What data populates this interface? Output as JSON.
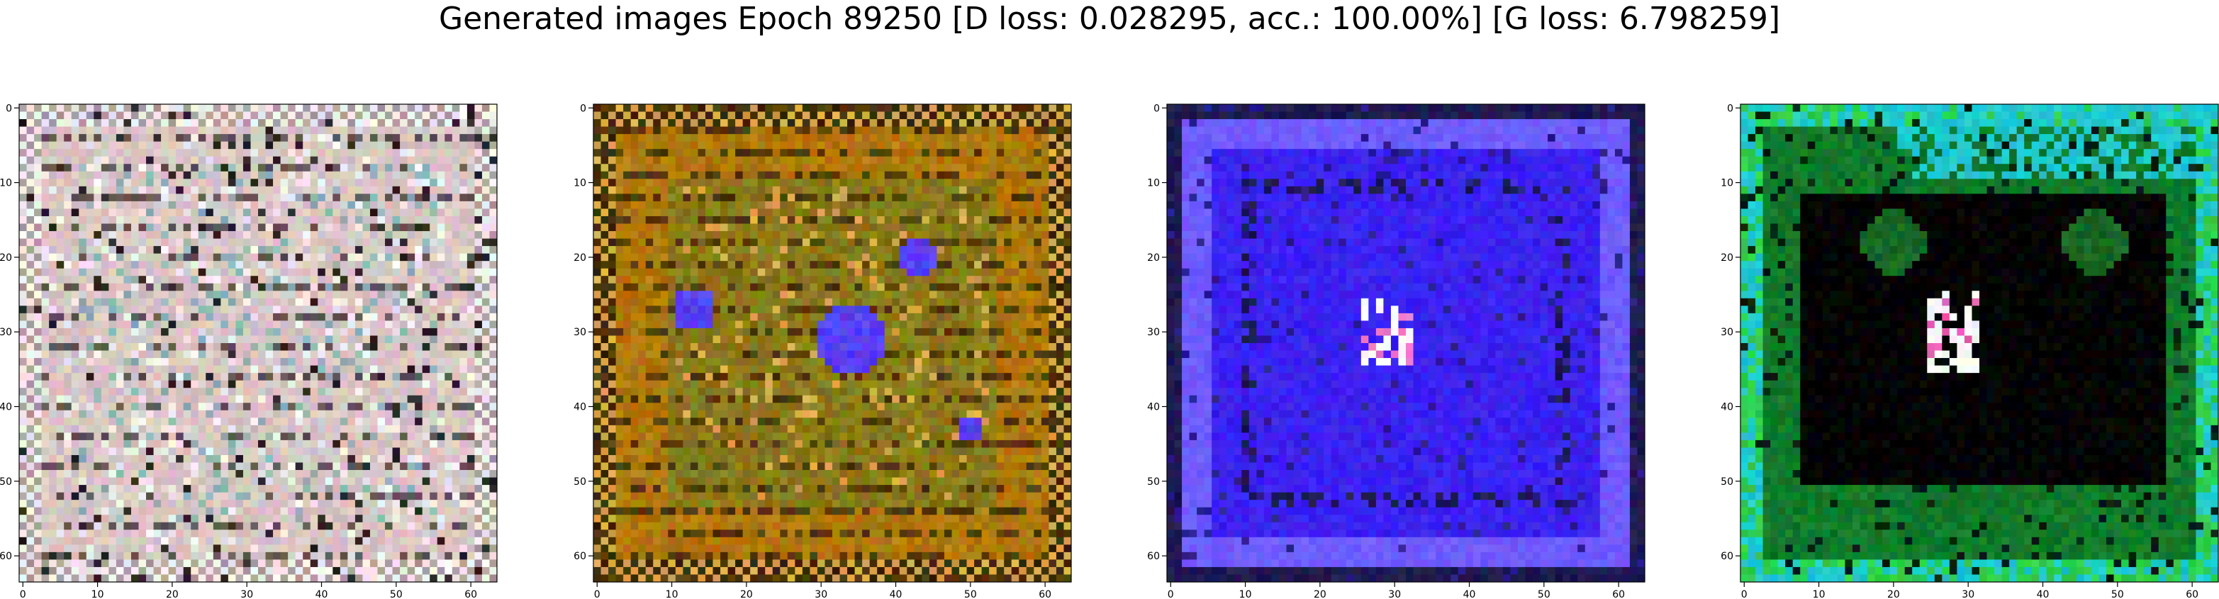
{
  "figure": {
    "title": "Generated images Epoch 89250 [D loss: 0.028295, acc.: 100.00%] [G loss: 6.798259]"
  },
  "chart_data": {
    "type": "heatmap",
    "title": "Generated images Epoch 89250 [D loss: 0.028295, acc.: 100.00%] [G loss: 6.798259]",
    "xlabel": "",
    "ylabel": "",
    "grid": false,
    "panels": [
      {
        "description": "generated 64x64 image, pale pink/grey frame with checkered border",
        "size": 64,
        "xlim": [
          -0.5,
          63.5
        ],
        "ylim": [
          63.5,
          -0.5
        ],
        "xticks": [
          0,
          10,
          20,
          30,
          40,
          50,
          60
        ],
        "yticks": [
          0,
          10,
          20,
          30,
          40,
          50,
          60
        ],
        "palette": {
          "base": "#d9c6c4",
          "inner": "#cfc8c6",
          "accent": "#8fb3b5",
          "dark": "#2a2224",
          "light": "#f1ecec"
        }
      },
      {
        "description": "generated 64x64 image, ochre/olive frame with blue blobs",
        "size": 64,
        "xlim": [
          -0.5,
          63.5
        ],
        "ylim": [
          63.5,
          -0.5
        ],
        "xticks": [
          0,
          10,
          20,
          30,
          40,
          50,
          60
        ],
        "yticks": [
          0,
          10,
          20,
          30,
          40,
          50,
          60
        ],
        "palette": {
          "base": "#b0780c",
          "inner": "#8a7a1a",
          "accent": "#5540f0",
          "dark": "#3a2a08",
          "light": "#d9a84a"
        }
      },
      {
        "description": "generated 64x64 image, blue field with small white/pink figure in center",
        "size": 64,
        "xlim": [
          -0.5,
          63.5
        ],
        "ylim": [
          63.5,
          -0.5
        ],
        "xticks": [
          0,
          10,
          20,
          30,
          40,
          50,
          60
        ],
        "yticks": [
          0,
          10,
          20,
          30,
          40,
          50,
          60
        ],
        "palette": {
          "base": "#3b22f0",
          "inner": "#3520e6",
          "accent": "#ffffff",
          "dark": "#1e1a50",
          "light": "#6f5cff"
        }
      },
      {
        "description": "generated 64x64 image, green/cyan frame with black interior and white/pink figure",
        "size": 64,
        "xlim": [
          -0.5,
          63.5
        ],
        "ylim": [
          63.5,
          -0.5
        ],
        "xticks": [
          0,
          10,
          20,
          30,
          40,
          50,
          60
        ],
        "yticks": [
          0,
          10,
          20,
          30,
          40,
          50,
          60
        ],
        "palette": {
          "base": "#117a2a",
          "inner": "#000000",
          "accent": "#20c8d0",
          "dark": "#052010",
          "light": "#2ecf4a"
        }
      }
    ]
  }
}
